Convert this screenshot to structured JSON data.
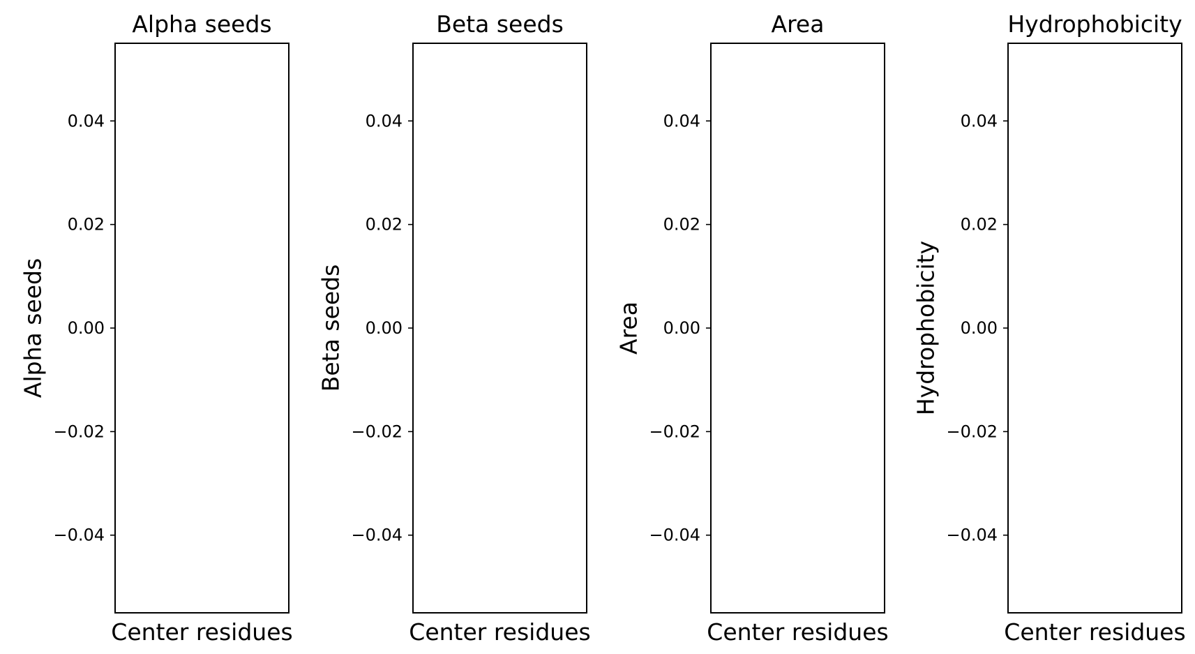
{
  "chart_data": [
    {
      "type": "bar",
      "title": "Alpha seeds",
      "xlabel": "Center residues",
      "ylabel": "Alpha seeds",
      "ylim": [
        -0.055,
        0.055
      ],
      "yticks": [
        0.04,
        0.02,
        0.0,
        -0.02,
        -0.04
      ],
      "ytick_labels": [
        "0.04",
        "0.02",
        "0.00",
        "−0.02",
        "−0.04"
      ],
      "categories": [],
      "values": [],
      "grid": false
    },
    {
      "type": "bar",
      "title": "Beta seeds",
      "xlabel": "Center residues",
      "ylabel": "Beta seeds",
      "ylim": [
        -0.055,
        0.055
      ],
      "yticks": [
        0.04,
        0.02,
        0.0,
        -0.02,
        -0.04
      ],
      "ytick_labels": [
        "0.04",
        "0.02",
        "0.00",
        "−0.02",
        "−0.04"
      ],
      "categories": [],
      "values": [],
      "grid": false
    },
    {
      "type": "bar",
      "title": "Area",
      "xlabel": "Center residues",
      "ylabel": "Area",
      "ylim": [
        -0.055,
        0.055
      ],
      "yticks": [
        0.04,
        0.02,
        0.0,
        -0.02,
        -0.04
      ],
      "ytick_labels": [
        "0.04",
        "0.02",
        "0.00",
        "−0.02",
        "−0.04"
      ],
      "categories": [],
      "values": [],
      "grid": false
    },
    {
      "type": "bar",
      "title": "Hydrophobicity",
      "xlabel": "Center residues",
      "ylabel": "Hydrophobicity",
      "ylim": [
        -0.055,
        0.055
      ],
      "yticks": [
        0.04,
        0.02,
        0.0,
        -0.02,
        -0.04
      ],
      "ytick_labels": [
        "0.04",
        "0.02",
        "0.00",
        "−0.02",
        "−0.04"
      ],
      "categories": [],
      "values": [],
      "grid": false
    }
  ]
}
